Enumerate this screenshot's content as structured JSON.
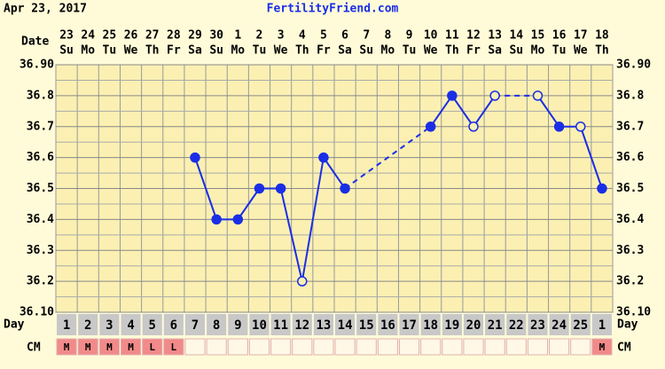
{
  "chart_data": {
    "type": "line",
    "date_label": "Apr 23, 2017",
    "site": "FertilityFriend.com",
    "row_labels": {
      "date": "Date",
      "day": "Day",
      "cm": "CM"
    },
    "categories": [
      "23",
      "24",
      "25",
      "26",
      "27",
      "28",
      "29",
      "30",
      "1",
      "2",
      "3",
      "4",
      "5",
      "6",
      "7",
      "8",
      "9",
      "10",
      "11",
      "12",
      "13",
      "14",
      "15",
      "16",
      "17",
      "18"
    ],
    "weekdays": [
      "Su",
      "Mo",
      "Tu",
      "We",
      "Th",
      "Fr",
      "Sa",
      "Su",
      "Mo",
      "Tu",
      "We",
      "Th",
      "Fr",
      "Sa",
      "Su",
      "Mo",
      "Tu",
      "We",
      "Th",
      "Fr",
      "Sa",
      "Su",
      "Mo",
      "Tu",
      "We",
      "Th"
    ],
    "cycle_days": [
      1,
      2,
      3,
      4,
      5,
      6,
      7,
      8,
      9,
      10,
      11,
      12,
      13,
      14,
      15,
      16,
      17,
      18,
      19,
      20,
      21,
      22,
      23,
      24,
      25,
      1
    ],
    "cm": [
      "M",
      "M",
      "M",
      "M",
      "L",
      "L",
      null,
      null,
      null,
      null,
      null,
      null,
      null,
      null,
      null,
      null,
      null,
      null,
      null,
      null,
      null,
      null,
      null,
      null,
      null,
      "M"
    ],
    "series": [
      {
        "color": "#1a2ee6",
        "values": [
          null,
          null,
          null,
          null,
          null,
          null,
          36.6,
          36.4,
          36.4,
          36.5,
          36.5,
          36.2,
          36.6,
          36.5,
          null,
          null,
          null,
          36.7,
          36.8,
          36.7,
          36.8,
          null,
          36.8,
          36.7,
          36.7,
          36.5
        ],
        "hollow": [
          false,
          false,
          false,
          false,
          false,
          false,
          false,
          false,
          false,
          false,
          false,
          true,
          false,
          false,
          false,
          false,
          false,
          false,
          false,
          true,
          true,
          false,
          true,
          false,
          true,
          false
        ]
      }
    ],
    "ylim": [
      36.1,
      36.9
    ],
    "yticks": [
      {
        "value": 36.1,
        "label": "36.10"
      },
      36.2,
      36.3,
      36.4,
      36.5,
      36.6,
      36.7,
      36.8,
      {
        "value": 36.9,
        "label": "36.90"
      }
    ],
    "grid": true
  }
}
